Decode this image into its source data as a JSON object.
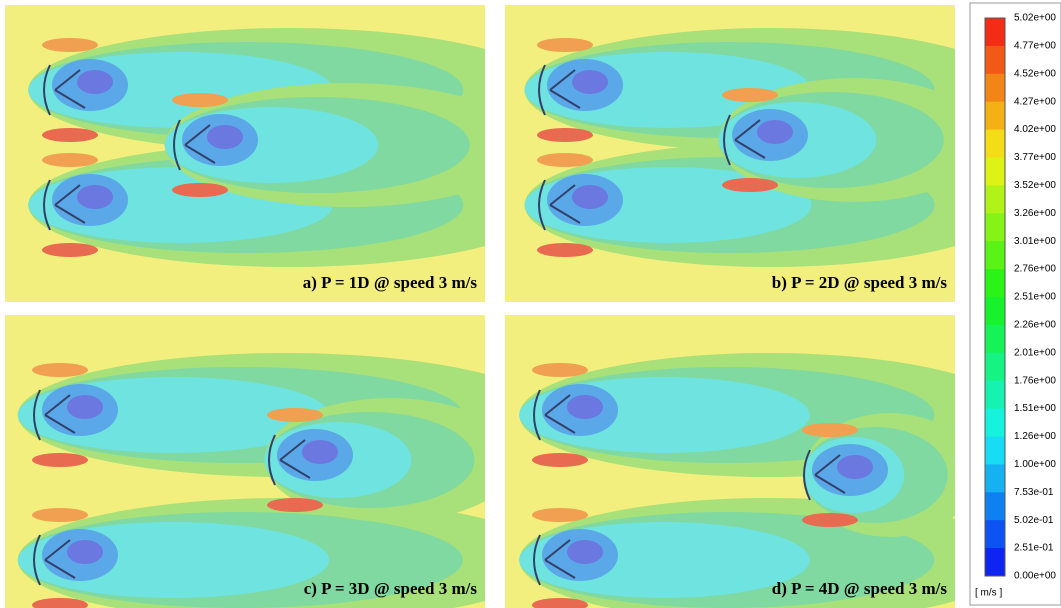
{
  "panels": [
    {
      "caption": "a) P = 1D @ speed 3 m/s"
    },
    {
      "caption": "b) P = 2D @ speed 3 m/s"
    },
    {
      "caption": "c) P = 3D @ speed 3 m/s"
    },
    {
      "caption": "d) P = 4D @ speed 3 m/s"
    }
  ],
  "legend": {
    "labels": [
      "5.02e+00",
      "4.77e+00",
      "4.52e+00",
      "4.27e+00",
      "4.02e+00",
      "3.77e+00",
      "3.52e+00",
      "3.26e+00",
      "3.01e+00",
      "2.76e+00",
      "2.51e+00",
      "2.26e+00",
      "2.01e+00",
      "1.76e+00",
      "1.51e+00",
      "1.26e+00",
      "1.00e+00",
      "7.53e-01",
      "5.02e-01",
      "2.51e-01",
      "0.00e+00"
    ],
    "unit": "[ m/s ]"
  }
}
